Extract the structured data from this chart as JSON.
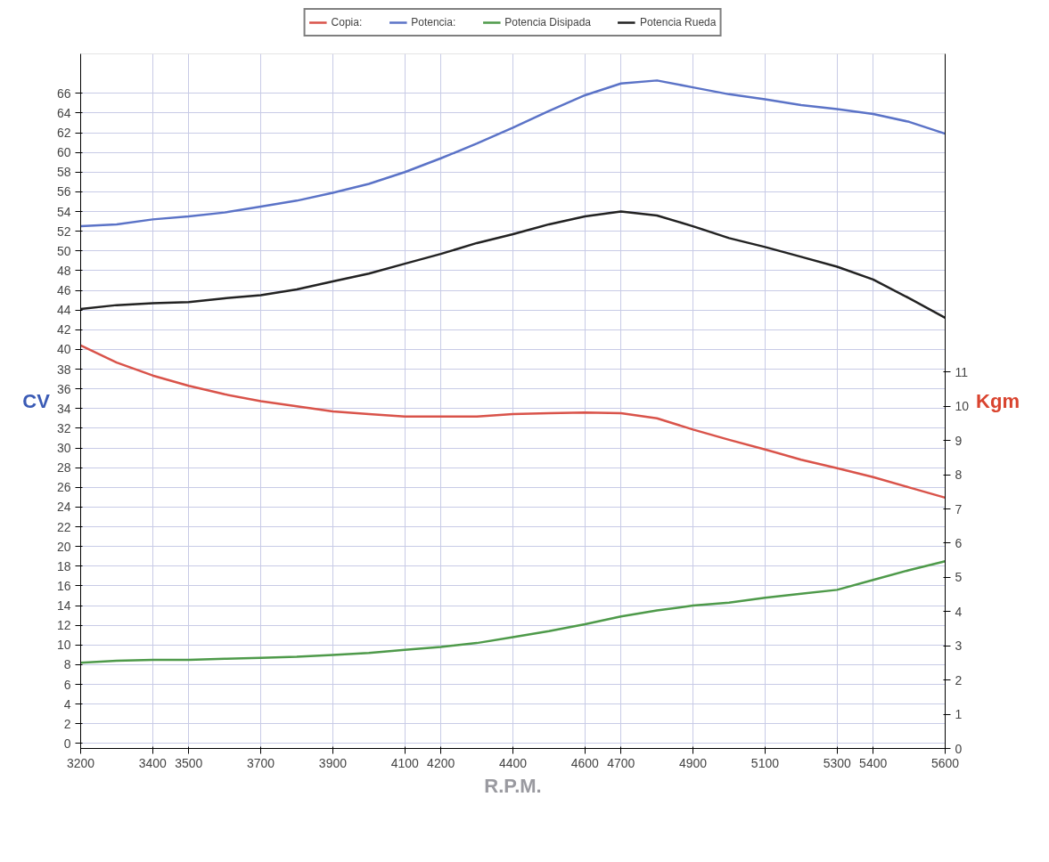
{
  "chart_data": {
    "type": "line",
    "xlabel": "R.P.M.",
    "ylabel": "CV",
    "y2label": "Kgm",
    "x": [
      3200,
      3300,
      3400,
      3500,
      3600,
      3700,
      3800,
      3900,
      4000,
      4100,
      4200,
      4300,
      4400,
      4500,
      4600,
      4700,
      4800,
      4900,
      5000,
      5100,
      5200,
      5300,
      5400,
      5500,
      5600
    ],
    "series": [
      {
        "name": "Copia:",
        "color": "#d9534a",
        "axis": "y2",
        "values": [
          11.78,
          11.28,
          10.9,
          10.6,
          10.35,
          10.15,
          10.0,
          9.85,
          9.77,
          9.7,
          9.7,
          9.7,
          9.77,
          9.8,
          9.82,
          9.8,
          9.65,
          9.32,
          9.02,
          8.74,
          8.44,
          8.19,
          7.93,
          7.63,
          7.33
        ]
      },
      {
        "name": "Potencia:",
        "color": "#5b73c7",
        "values": [
          52.5,
          52.7,
          53.2,
          53.5,
          53.9,
          54.5,
          55.1,
          55.9,
          56.8,
          58.0,
          59.4,
          60.9,
          62.5,
          64.2,
          65.8,
          67.0,
          67.3,
          66.6,
          65.9,
          65.4,
          64.8,
          64.4,
          63.9,
          63.1,
          61.9
        ]
      },
      {
        "name": "Potencia Disipada",
        "color": "#4e9a4a",
        "values": [
          8.2,
          8.4,
          8.5,
          8.5,
          8.6,
          8.7,
          8.8,
          9.0,
          9.2,
          9.5,
          9.8,
          10.2,
          10.8,
          11.4,
          12.1,
          12.9,
          13.5,
          14.0,
          14.3,
          14.8,
          15.2,
          15.6,
          16.6,
          17.6,
          18.5
        ]
      },
      {
        "name": "Potencia Rueda",
        "color": "#222222",
        "values": [
          44.1,
          44.5,
          44.7,
          44.8,
          45.2,
          45.5,
          46.1,
          46.9,
          47.7,
          48.7,
          49.7,
          50.8,
          51.7,
          52.7,
          53.5,
          54.0,
          53.6,
          52.5,
          51.3,
          50.4,
          49.4,
          48.4,
          47.1,
          45.2,
          43.2
        ]
      }
    ],
    "xlim": [
      3200,
      5600
    ],
    "xticks": [
      3200,
      3400,
      3500,
      3700,
      3900,
      4100,
      4200,
      4400,
      4600,
      4700,
      4900,
      5100,
      5300,
      5400,
      5600
    ],
    "ylim": [
      -0.5,
      70
    ],
    "yticks": [
      0,
      2,
      4,
      6,
      8,
      10,
      12,
      14,
      16,
      18,
      20,
      22,
      24,
      26,
      28,
      30,
      32,
      34,
      36,
      38,
      40,
      42,
      44,
      46,
      48,
      50,
      52,
      54,
      56,
      58,
      60,
      62,
      64,
      66
    ],
    "y2lim": [
      0,
      20.3
    ],
    "y2ticks": [
      0,
      1,
      2,
      3,
      4,
      5,
      6,
      7,
      8,
      9,
      10,
      11
    ],
    "grid": true,
    "legend": "top",
    "marker": "none",
    "line_style": "solid"
  }
}
